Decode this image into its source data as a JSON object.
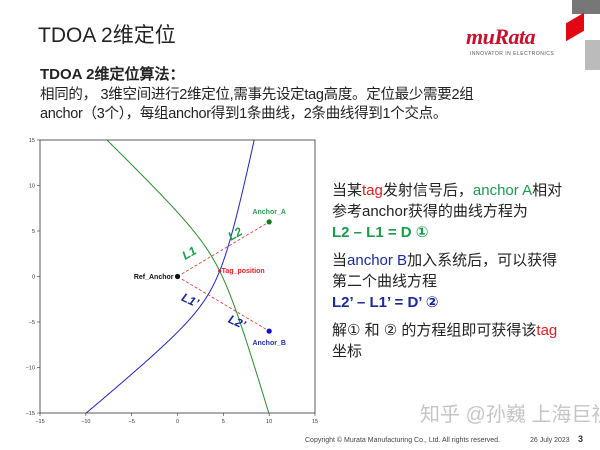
{
  "slide": {
    "title": "TDOA 2维定位",
    "page": "3",
    "date": "26 July 2023",
    "copyright": "Copyright © Murata Manufacturing Co., Ltd. All rights reserved.",
    "watermark": "知乎 @孙巍 上海巨视"
  },
  "logo": {
    "name": "muRata",
    "tagline": "INNOVATOR IN ELECTRONICS",
    "colors": {
      "brand": "#c8102e"
    }
  },
  "intro": {
    "heading": "TDOA 2维定位算法：",
    "line1": "相同的， 3维空间进行2维定位,需事先设定tag高度。定位最少需要2组",
    "line2": "anchor（3个），每组anchor得到1条曲线，2条曲线得到1个交点。"
  },
  "explain": {
    "p1a": "当某",
    "p1tag": "tag",
    "p1b": "发射信号后，",
    "p1anchor": "anchor A",
    "p1c": "相对",
    "p1line2": "参考anchor获得的曲线方程为",
    "eq1": "L2 – L1 = D ①",
    "p2a": "当",
    "p2anchor": "anchor B",
    "p2b": "加入系统后，可以获得",
    "p2line2": "第二个曲线方程",
    "eq2": "L2’ – L1’ = D’ ②",
    "p3a": "解① 和 ② 的方程组即可获得该",
    "p3tag": "tag",
    "p3line2": "坐标"
  },
  "chart_data": {
    "type": "scatter",
    "xlim": [
      -15,
      15
    ],
    "ylim": [
      -15,
      15
    ],
    "xticks": [
      "−15",
      "−10",
      "−5",
      "0",
      "5",
      "10",
      "15"
    ],
    "yticks": [
      "15",
      "10",
      "5",
      "0",
      "−5",
      "−10",
      "−15"
    ],
    "points": [
      {
        "label": "Ref_Anchor",
        "x": 0,
        "y": 0,
        "color": "#111111"
      },
      {
        "label": "Anchor_A",
        "x": 10,
        "y": 6,
        "color": "#1a7a1a",
        "label_color": "#2aa050"
      },
      {
        "label": "Anchor_B",
        "x": 10,
        "y": -6,
        "color": "#1010d0",
        "label_color": "#2030b0"
      },
      {
        "label": "Tag_position",
        "x": 4.6,
        "y": 0.6,
        "color": "#e02020",
        "label_color": "#e02020"
      }
    ],
    "curves": [
      {
        "foci": [
          "Ref_Anchor",
          "Anchor_A"
        ],
        "color": "#2a8a2a"
      },
      {
        "foci": [
          "Ref_Anchor",
          "Anchor_B"
        ],
        "color": "#2020c0"
      }
    ],
    "annotations": [
      {
        "text": "L1",
        "x": 1.5,
        "y": 2.2,
        "color": "#1a9a4a"
      },
      {
        "text": "L2",
        "x": 6.5,
        "y": 4.3,
        "color": "#1a9a4a"
      },
      {
        "text": "L1’",
        "x": 1.2,
        "y": -3.0,
        "color": "#1a2a9a"
      },
      {
        "text": "L2’",
        "x": 6.3,
        "y": -5.4,
        "color": "#1a2a9a"
      }
    ]
  }
}
